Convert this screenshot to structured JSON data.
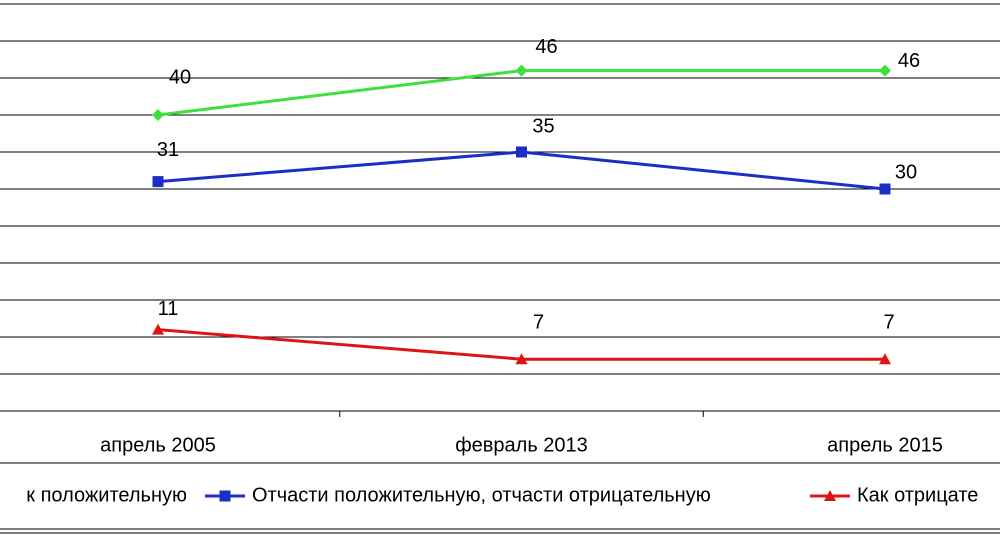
{
  "chart_data": {
    "type": "line",
    "categories": [
      "апрель 2005",
      "февраль 2013",
      "апрель 2015"
    ],
    "series": [
      {
        "name": "к положительную",
        "color": "#3ee03e",
        "marker": "diamond",
        "values": [
          40,
          46,
          46
        ]
      },
      {
        "name": "Отчасти положительную, отчасти отрицательную",
        "color": "#1c2ec4",
        "marker": "square",
        "values": [
          31,
          35,
          30
        ]
      },
      {
        "name": "Как отрицате",
        "color": "#e01414",
        "marker": "triangle",
        "values": [
          11,
          7,
          7
        ]
      }
    ],
    "ylim": [
      0,
      55
    ],
    "yticks": [
      0,
      5,
      10,
      15,
      20,
      25,
      30,
      35,
      40,
      45,
      50,
      55
    ],
    "grid": true,
    "legend": "bottom"
  }
}
